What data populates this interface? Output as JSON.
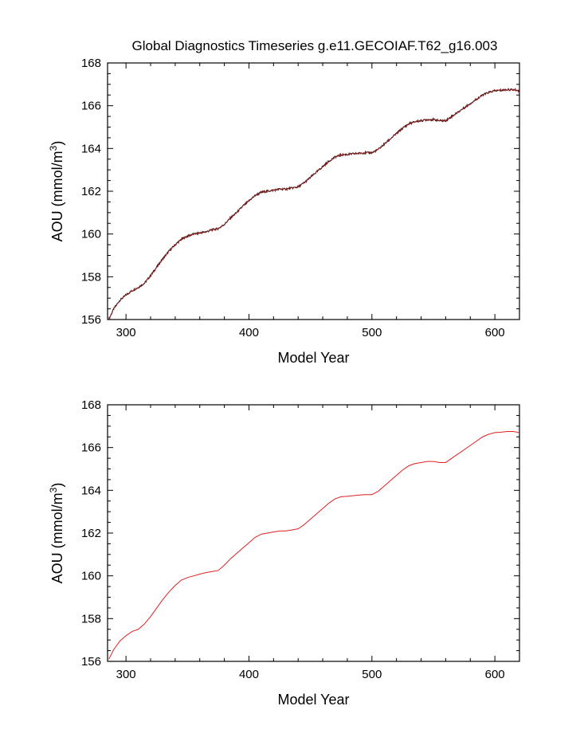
{
  "figure": {
    "title": "Global Diagnostics Timeseries g.e11.GECOIAF.T62_g16.003"
  },
  "chart_data": [
    {
      "type": "line",
      "panel": "top",
      "xlabel": "Model Year",
      "ylabel_main": "AOU (mmol/m",
      "ylabel_sup": "3",
      "ylabel_close": ")",
      "xlim": [
        285,
        620
      ],
      "ylim": [
        156,
        168
      ],
      "x_ticks": [
        300,
        400,
        500,
        600
      ],
      "y_ticks": [
        156,
        158,
        160,
        162,
        164,
        166,
        168
      ],
      "grid": false,
      "series": [
        {
          "color": "#8b1a1a",
          "noisy": true,
          "x": [
            286,
            290,
            295,
            300,
            305,
            310,
            315,
            320,
            325,
            330,
            335,
            340,
            345,
            350,
            355,
            360,
            365,
            370,
            375,
            380,
            385,
            390,
            395,
            400,
            405,
            410,
            415,
            420,
            425,
            430,
            435,
            440,
            445,
            450,
            455,
            460,
            465,
            470,
            475,
            480,
            485,
            490,
            495,
            500,
            505,
            510,
            515,
            520,
            525,
            530,
            535,
            540,
            545,
            550,
            555,
            560,
            565,
            570,
            575,
            580,
            585,
            590,
            595,
            600,
            605,
            610,
            615,
            620
          ],
          "y": [
            156.0,
            156.5,
            156.9,
            157.15,
            157.35,
            157.5,
            157.7,
            158.05,
            158.45,
            158.85,
            159.2,
            159.5,
            159.75,
            159.9,
            160.0,
            160.05,
            160.1,
            160.2,
            160.25,
            160.45,
            160.75,
            161.0,
            161.3,
            161.55,
            161.8,
            161.95,
            162.0,
            162.05,
            162.1,
            162.1,
            162.15,
            162.2,
            162.4,
            162.65,
            162.9,
            163.15,
            163.4,
            163.6,
            163.7,
            163.72,
            163.75,
            163.78,
            163.8,
            163.8,
            163.95,
            164.2,
            164.45,
            164.7,
            164.95,
            165.15,
            165.25,
            165.3,
            165.35,
            165.35,
            165.3,
            165.3,
            165.5,
            165.7,
            165.9,
            166.1,
            166.3,
            166.5,
            166.62,
            166.7,
            166.72,
            166.75,
            166.75,
            166.7
          ]
        }
      ]
    },
    {
      "type": "line",
      "panel": "bottom",
      "xlabel": "Model Year",
      "ylabel_main": "AOU (mmol/m",
      "ylabel_sup": "3",
      "ylabel_close": ")",
      "xlim": [
        285,
        620
      ],
      "ylim": [
        156,
        168
      ],
      "x_ticks": [
        300,
        400,
        500,
        600
      ],
      "y_ticks": [
        156,
        158,
        160,
        162,
        164,
        166,
        168
      ],
      "grid": false,
      "series": [
        {
          "color": "#e02020",
          "noisy": false,
          "x": [
            286,
            290,
            295,
            300,
            305,
            310,
            315,
            320,
            325,
            330,
            335,
            340,
            345,
            350,
            355,
            360,
            365,
            370,
            375,
            380,
            385,
            390,
            395,
            400,
            405,
            410,
            415,
            420,
            425,
            430,
            435,
            440,
            445,
            450,
            455,
            460,
            465,
            470,
            475,
            480,
            485,
            490,
            495,
            500,
            505,
            510,
            515,
            520,
            525,
            530,
            535,
            540,
            545,
            550,
            555,
            560,
            565,
            570,
            575,
            580,
            585,
            590,
            595,
            600,
            605,
            610,
            615,
            620
          ],
          "y": [
            156.1,
            156.55,
            156.95,
            157.2,
            157.4,
            157.5,
            157.75,
            158.1,
            158.5,
            158.9,
            159.25,
            159.55,
            159.8,
            159.92,
            160.0,
            160.08,
            160.15,
            160.2,
            160.25,
            160.5,
            160.8,
            161.05,
            161.3,
            161.55,
            161.8,
            161.95,
            162.0,
            162.05,
            162.1,
            162.1,
            162.15,
            162.2,
            162.4,
            162.65,
            162.9,
            163.15,
            163.4,
            163.6,
            163.7,
            163.72,
            163.75,
            163.78,
            163.8,
            163.8,
            163.95,
            164.2,
            164.45,
            164.7,
            164.95,
            165.15,
            165.25,
            165.3,
            165.35,
            165.35,
            165.3,
            165.3,
            165.5,
            165.7,
            165.9,
            166.1,
            166.3,
            166.5,
            166.62,
            166.7,
            166.72,
            166.75,
            166.75,
            166.7
          ]
        }
      ]
    }
  ]
}
